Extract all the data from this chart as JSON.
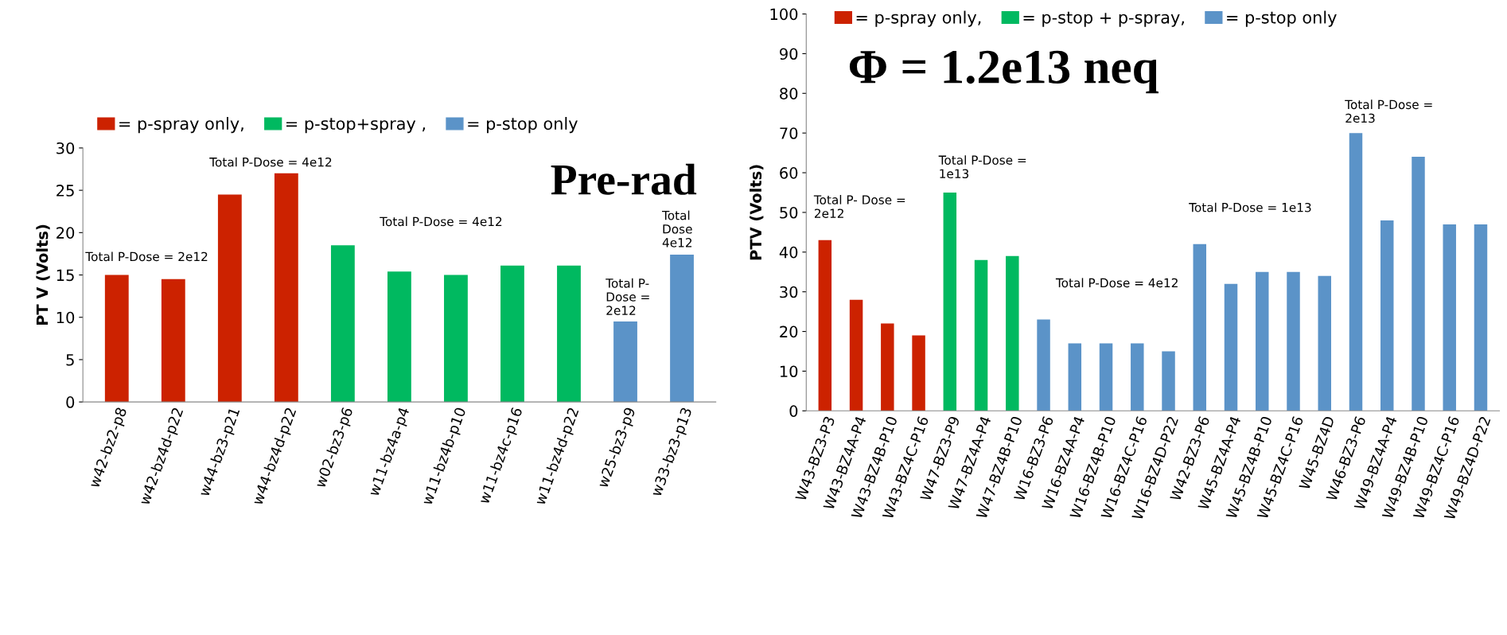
{
  "chart_data": [
    {
      "type": "bar",
      "title": "Pre-rad",
      "ylabel": "PT V (Volts)",
      "categories": [
        "w42-bz2-p8",
        "w42-bz4d-p22",
        "w44-bz3-p21",
        "w44-bz4d-p22",
        "w02-bz3-p6",
        "w11-bz4a-p4",
        "w11-bz4b-p10",
        "w11-bz4c-p16",
        "w11-bz4d-p22",
        "w25-bz3-p9",
        "w33-bz3-p13"
      ],
      "series": [
        {
          "name": "= p-spray only,",
          "color": "#cc2200",
          "values": [
            15,
            14.5,
            24.5,
            27,
            null,
            null,
            null,
            null,
            null,
            null,
            null
          ]
        },
        {
          "name": "= p-stop+spray ,",
          "color": "#00b960",
          "values": [
            null,
            null,
            null,
            null,
            18.5,
            15.4,
            15,
            16.1,
            16.1,
            null,
            null
          ]
        },
        {
          "name": "= p-stop only",
          "color": "#5b93c8",
          "values": [
            null,
            null,
            null,
            null,
            null,
            null,
            null,
            null,
            null,
            9.5,
            17.4
          ]
        }
      ],
      "ylim": [
        0,
        30
      ],
      "yticks": [
        0,
        5,
        10,
        15,
        20,
        25,
        30
      ],
      "legend": "top left",
      "grid": false,
      "annotations": [
        "Total P-Dose = 2e12",
        "Total P-Dose = 4e12",
        "Total P-Dose = 4e12",
        "Total P-\nDose =\n2e12",
        "Total\nDose\n4e12"
      ]
    },
    {
      "type": "bar",
      "title": "Φ = 1.2e13 neq",
      "ylabel": "PTV (Volts)",
      "categories": [
        "W43-BZ3-P3",
        "W43-BZ4A-P4",
        "W43-BZ4B-P10",
        "W43-BZ4C-P16",
        "W47-BZ3-P9",
        "W47-BZ4A-P4",
        "W47-BZ4B-P10",
        "W16-BZ3-P6",
        "W16-BZ4A-P4",
        "W16-BZ4B-P10",
        "W16-BZ4C-P16",
        "W16-BZ4D-P22",
        "W42-BZ3-P6",
        "W45-BZ4A-P4",
        "W45-BZ4B-P10",
        "W45-BZ4C-P16",
        "W45-BZ4D",
        "W46-BZ3-P6",
        "W49-BZ4A-P4",
        "W49-BZ4B-P10",
        "W49-BZ4C-P16",
        "W49-BZ4D-P22"
      ],
      "series": [
        {
          "name": "= p-spray only,",
          "color": "#cc2200",
          "values": [
            43,
            28,
            22,
            19,
            null,
            null,
            null,
            null,
            null,
            null,
            null,
            null,
            null,
            null,
            null,
            null,
            null,
            null,
            null,
            null,
            null,
            null
          ]
        },
        {
          "name": "= p-stop + p-spray,",
          "color": "#00b960",
          "values": [
            null,
            null,
            null,
            null,
            55,
            38,
            39,
            null,
            null,
            null,
            null,
            null,
            null,
            null,
            null,
            null,
            null,
            null,
            null,
            null,
            null,
            null
          ]
        },
        {
          "name": "= p-stop only",
          "color": "#5b93c8",
          "values": [
            null,
            null,
            null,
            null,
            null,
            null,
            null,
            23,
            17,
            17,
            17,
            15,
            42,
            32,
            35,
            35,
            34,
            70,
            48,
            64,
            47,
            47
          ]
        }
      ],
      "ylim": [
        0,
        100
      ],
      "yticks": [
        0,
        10,
        20,
        30,
        40,
        50,
        60,
        70,
        80,
        90,
        100
      ],
      "legend": "top left",
      "grid": false,
      "annotations": [
        "Total P- Dose =\n2e12",
        "Total P-Dose =\n1e13",
        "Total P-Dose = 4e12",
        "Total P-Dose = 1e13",
        "Total P-Dose =\n2e13"
      ]
    }
  ]
}
